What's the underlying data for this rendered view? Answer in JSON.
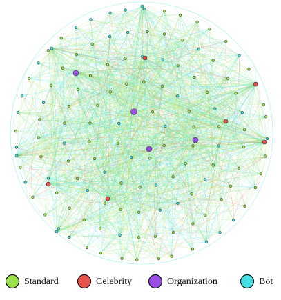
{
  "legend": [
    {
      "label": "Standard",
      "color": "#9ee04c"
    },
    {
      "label": "Celebrity",
      "color": "#e8524a"
    },
    {
      "label": "Organization",
      "color": "#9b4ee6"
    },
    {
      "label": "Bot",
      "color": "#44dfe0"
    }
  ]
}
